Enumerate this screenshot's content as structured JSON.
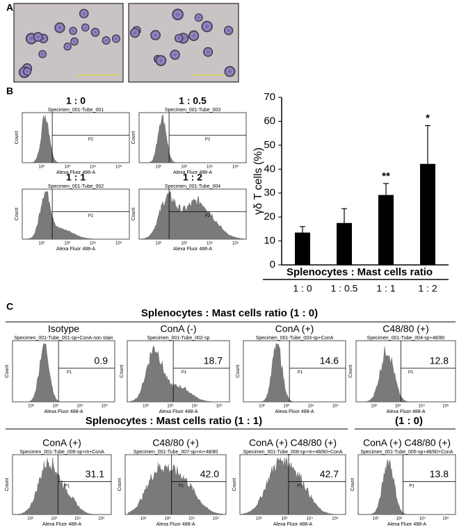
{
  "panel_labels": [
    "A",
    "B",
    "C"
  ],
  "flow_axis": {
    "x_label": "Alexa Fluor 488-A",
    "y_label": "Count",
    "x_tick_labels": [
      "10²",
      "10³",
      "10⁴",
      "10⁵"
    ]
  },
  "panel_b_histograms": [
    {
      "title": "1 : 0",
      "specimen": "Specimen_001-Tube_001",
      "gate": "P2"
    },
    {
      "title": "1 : 0.5",
      "specimen": "Specimen_001-Tube_003",
      "gate": "P2"
    },
    {
      "title": "1 : 1",
      "specimen": "Specimen_001-Tube_002",
      "gate": "P2"
    },
    {
      "title": "1 : 2",
      "specimen": "Specimen_001-Tube_004",
      "gate": "P2"
    }
  ],
  "chart_data": {
    "type": "bar",
    "y_label": "γδ T cells (%)",
    "x_label": "Splenocytes : Mast cells ratio",
    "categories": [
      "1 : 0",
      "1 : 0.5",
      "1 : 1",
      "1 : 2"
    ],
    "values": [
      13.5,
      17.5,
      29.2,
      42.2
    ],
    "errors": [
      2.5,
      6,
      4.8,
      16
    ],
    "value_annotations": [
      null,
      null,
      "**",
      "*"
    ],
    "color": "#000000",
    "ylim": [
      0,
      70
    ],
    "yticks": [
      0,
      10,
      20,
      30,
      40,
      50,
      60,
      70
    ]
  },
  "panel_c": {
    "row1_header": "Splenocytes : Mast cells ratio (1 : 0)",
    "row1": [
      {
        "title": "Isotype",
        "specimen": "Specimen_001-Tube_001-sp+ConA-non stain",
        "gate": "P1",
        "value": "0.9"
      },
      {
        "title": "ConA (-)",
        "specimen": "Specimen_001-Tube_002-sp",
        "gate": "P1",
        "value": "18.7"
      },
      {
        "title": "ConA (+)",
        "specimen": "Specimen_001-Tube_003-sp+ConA",
        "gate": "P1",
        "value": "14.6"
      },
      {
        "title": "C48/80 (+)",
        "specimen": "Specimen_001-Tube_004-sp+48/80",
        "gate": "P1",
        "value": "12.8"
      }
    ],
    "row2_header": "Splenocytes : Mast cells ratio (1 : 1)",
    "row2_header_right": "(1 : 0)",
    "row2": [
      {
        "title": "ConA (+)",
        "specimen": "Specimen_001-Tube_006-sp+m+ConA",
        "gate": "P1",
        "value": "31.1"
      },
      {
        "title": "C48/80 (+)",
        "specimen": "Specimen_001-Tube_007-sp+m+48/80",
        "gate": "P1",
        "value": "42.0"
      },
      {
        "title": "ConA (+) C48/80 (+)",
        "specimen": "Specimen_001-Tube_008-sp+m+48/80+ConA",
        "gate": "P1",
        "value": "42.7"
      },
      {
        "title": "ConA (+) C48/80 (+)",
        "specimen": "Specimen_001-Tube_005-sp+48/80+ConA",
        "gate": "P1",
        "value": "13.8"
      }
    ]
  }
}
